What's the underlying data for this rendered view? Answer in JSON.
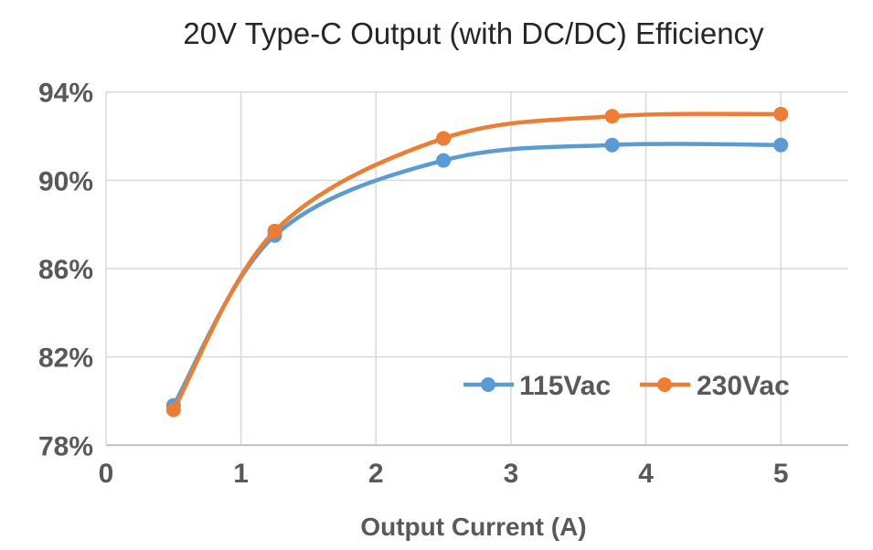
{
  "chart_data": {
    "type": "line",
    "title": "20V Type-C Output (with DC/DC) Efficiency",
    "xlabel": "Output Current (A)",
    "ylabel": "",
    "x": [
      0.5,
      1.25,
      2.5,
      3.75,
      5
    ],
    "series": [
      {
        "name": "115Vac",
        "color": "#5B9BD5",
        "values": [
          79.8,
          87.5,
          90.9,
          91.6,
          91.6
        ]
      },
      {
        "name": "230Vac",
        "color": "#ED7D31",
        "values": [
          79.6,
          87.7,
          91.9,
          92.9,
          93.0
        ]
      }
    ],
    "xlim": [
      0,
      5.5
    ],
    "ylim": [
      78,
      94
    ],
    "xticks": {
      "values": [
        0,
        1,
        2,
        3,
        4,
        5
      ],
      "labels": [
        "0",
        "1",
        "2",
        "3",
        "4",
        "5"
      ]
    },
    "yticks": {
      "values": [
        78,
        82,
        86,
        90,
        94
      ],
      "labels": [
        "78%",
        "82%",
        "86%",
        "90%",
        "94%"
      ]
    },
    "grid": true,
    "line_style": "smooth",
    "legend_position": "inside-bottom-right",
    "colors": {
      "gridline": "#D9D9D9",
      "axis_line": "#BFBFBF",
      "tick_text": "#595959",
      "title_text": "#262626",
      "background": "#FFFFFF"
    }
  }
}
